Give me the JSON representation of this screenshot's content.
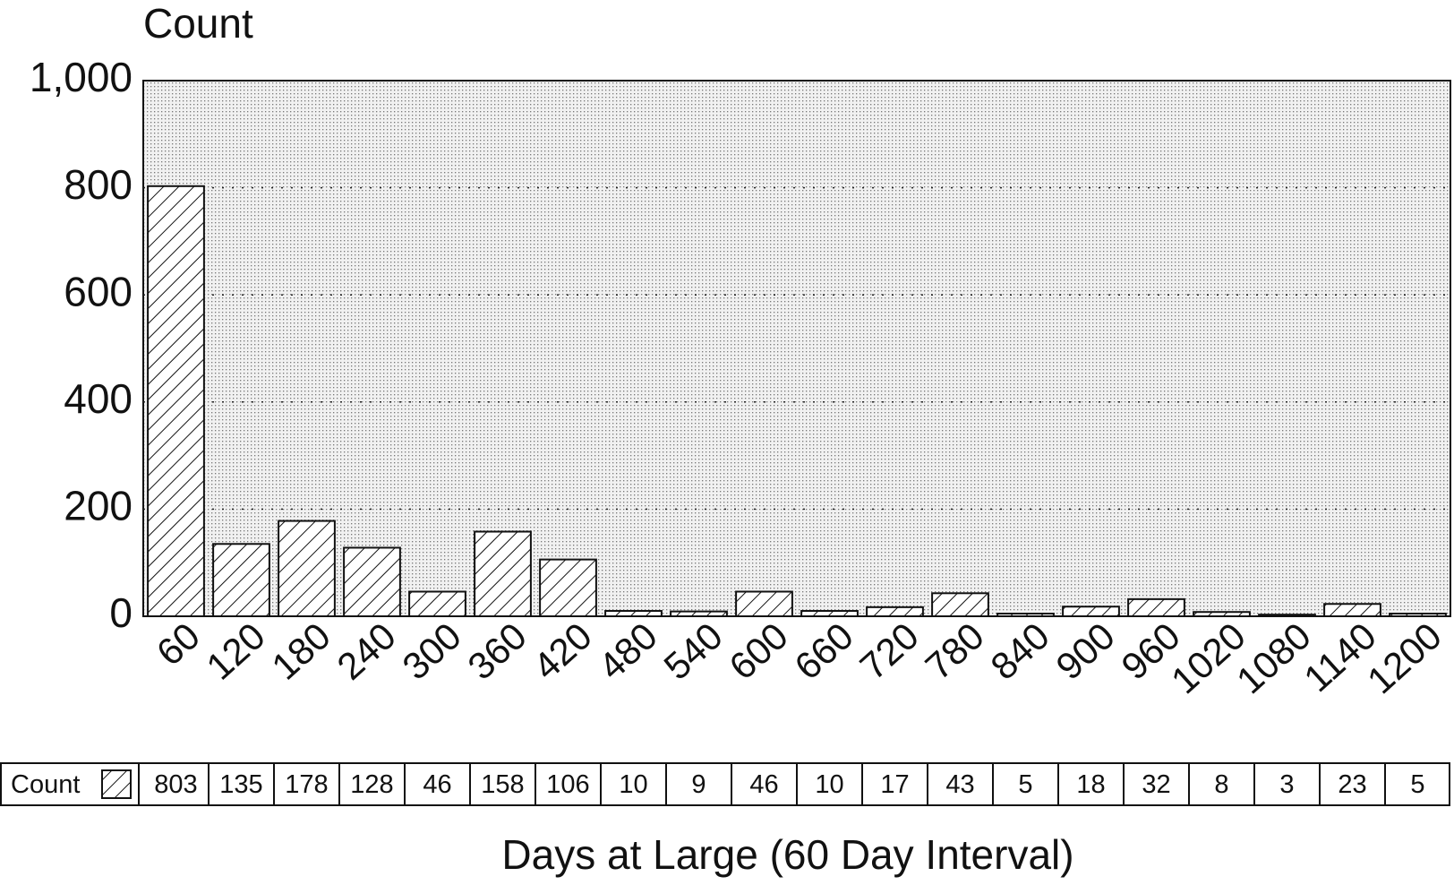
{
  "chart_data": {
    "type": "bar",
    "y_label": "Count",
    "x_label": "Days at Large (60 Day Interval)",
    "categories": [
      "60",
      "120",
      "180",
      "240",
      "300",
      "360",
      "420",
      "480",
      "540",
      "600",
      "660",
      "720",
      "780",
      "840",
      "900",
      "960",
      "1020",
      "1080",
      "1140",
      "1200"
    ],
    "series": [
      {
        "name": "Count",
        "color": "#ffffff",
        "values": [
          803,
          135,
          178,
          128,
          46,
          158,
          106,
          10,
          9,
          46,
          10,
          17,
          43,
          5,
          18,
          32,
          8,
          3,
          23,
          5
        ]
      }
    ],
    "ylim": [
      0,
      1000
    ],
    "yticks": [
      0,
      200,
      400,
      600,
      800,
      {
        "value": 1000,
        "label": "1,000"
      }
    ],
    "grid": true
  }
}
